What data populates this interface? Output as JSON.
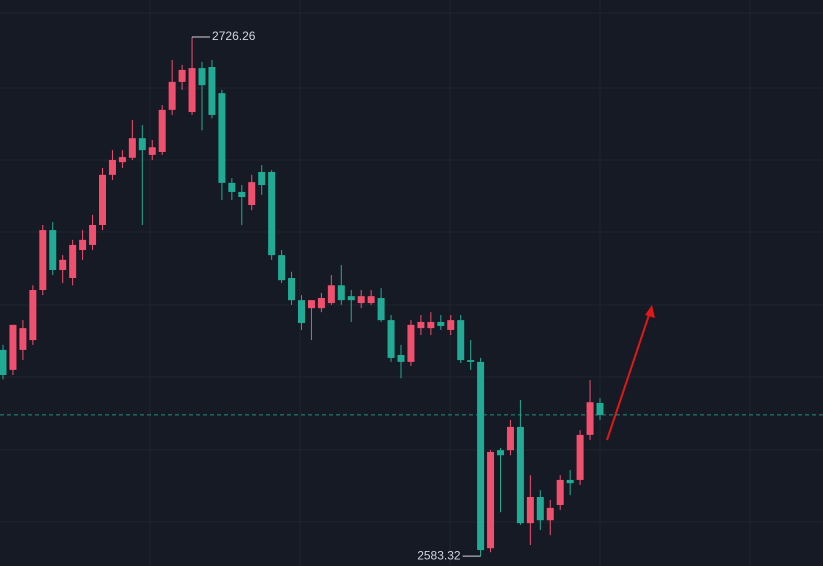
{
  "chart_data": {
    "type": "candlestick",
    "up_color": "#f0506e",
    "down_color": "#22ab94",
    "ylim": [
      2580.6,
      2736.45
    ],
    "high_label": "2726.26",
    "low_label": "2583.32",
    "open": [
      2640.1,
      2634.6,
      2640.1,
      2642.8,
      2656.6,
      2673.1,
      2662.1,
      2659.9,
      2667.6,
      2669.0,
      2674.5,
      2688.3,
      2691.8,
      2693.0,
      2698.4,
      2693.8,
      2694.6,
      2706.2,
      2713.9,
      2705.6,
      2717.7,
      2718.0,
      2710.8,
      2686.1,
      2683.6,
      2680.0,
      2689.1,
      2689.1,
      2666.2,
      2659.9,
      2653.8,
      2651.6,
      2651.6,
      2653.0,
      2657.9,
      2654.9,
      2653.0,
      2653.0,
      2654.4,
      2648.3,
      2638.7,
      2636.8,
      2646.1,
      2646.1,
      2647.8,
      2645.6,
      2648.3,
      2637.3,
      2636.8,
      2585.5,
      2612.5,
      2612.5,
      2618.9,
      2592.4,
      2599.6,
      2593.2,
      2597.4,
      2604.3,
      2604.3,
      2616.7,
      2625.5
    ],
    "high": [
      2641.5,
      2647.0,
      2648.3,
      2657.9,
      2674.5,
      2675.3,
      2666.2,
      2670.4,
      2673.1,
      2677.3,
      2690.2,
      2695.1,
      2695.1,
      2703.4,
      2702.0,
      2697.9,
      2707.5,
      2719.9,
      2718.6,
      2726.26,
      2719.4,
      2719.9,
      2711.7,
      2687.4,
      2685.5,
      2688.3,
      2691.0,
      2689.6,
      2667.6,
      2661.6,
      2655.2,
      2653.8,
      2655.8,
      2660.7,
      2663.5,
      2656.6,
      2656.6,
      2656.6,
      2657.1,
      2649.7,
      2641.5,
      2648.3,
      2649.7,
      2650.5,
      2649.7,
      2649.7,
      2649.7,
      2642.8,
      2637.9,
      2612.5,
      2613.1,
      2620.8,
      2626.3,
      2605.6,
      2601.5,
      2598.8,
      2605.6,
      2607.0,
      2618.0,
      2631.8,
      2626.8
    ],
    "low": [
      2632.0,
      2633.2,
      2637.3,
      2641.5,
      2655.2,
      2660.7,
      2658.5,
      2657.9,
      2664.9,
      2667.6,
      2673.1,
      2686.9,
      2690.2,
      2692.4,
      2674.5,
      2692.4,
      2693.8,
      2704.8,
      2711.7,
      2704.8,
      2700.6,
      2703.9,
      2681.4,
      2681.4,
      2674.5,
      2678.6,
      2682.8,
      2664.9,
      2658.5,
      2652.5,
      2645.6,
      2642.8,
      2650.5,
      2652.5,
      2652.5,
      2647.8,
      2651.6,
      2652.5,
      2647.8,
      2636.8,
      2632.3,
      2635.7,
      2644.2,
      2644.2,
      2645.6,
      2644.2,
      2636.5,
      2634.6,
      2583.32,
      2584.4,
      2595.4,
      2611.1,
      2591.9,
      2586.4,
      2590.5,
      2589.1,
      2596.0,
      2600.1,
      2602.9,
      2615.3,
      2620.8
    ],
    "close": [
      2633.2,
      2647.0,
      2646.1,
      2656.6,
      2673.1,
      2662.1,
      2664.9,
      2669.0,
      2670.4,
      2674.5,
      2688.3,
      2692.4,
      2693.2,
      2698.4,
      2695.1,
      2695.9,
      2706.2,
      2713.9,
      2717.2,
      2717.7,
      2713.0,
      2704.8,
      2686.1,
      2683.6,
      2682.2,
      2686.3,
      2685.5,
      2666.2,
      2659.3,
      2653.8,
      2647.5,
      2653.8,
      2654.4,
      2657.9,
      2653.8,
      2653.8,
      2654.9,
      2654.9,
      2648.3,
      2637.9,
      2636.8,
      2647.0,
      2647.8,
      2647.8,
      2646.7,
      2648.3,
      2637.3,
      2636.8,
      2585.0,
      2612.0,
      2611.1,
      2618.9,
      2592.4,
      2599.6,
      2593.2,
      2596.6,
      2604.3,
      2603.4,
      2616.7,
      2625.7,
      2622.2
    ]
  }
}
